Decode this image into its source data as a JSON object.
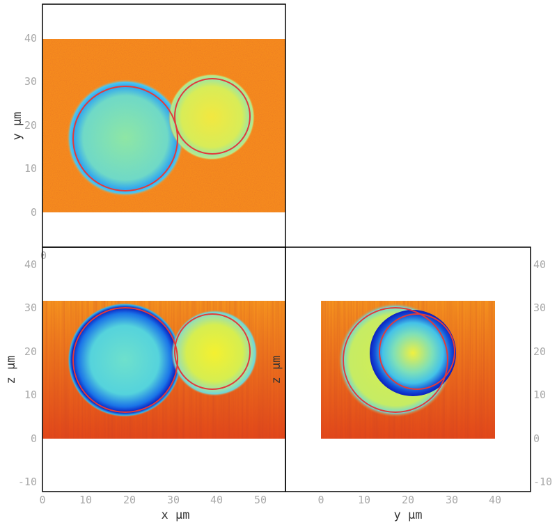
{
  "colors": {
    "frame": "#000000",
    "tick_text": "#a8a8a8",
    "circle": "#e23a3a",
    "colormap": "jet"
  },
  "panels": {
    "xy": {
      "xlabel": "",
      "ylabel": "y  µm",
      "yticks": [
        "0",
        "10",
        "20",
        "30",
        "40"
      ],
      "corner_tick": "0"
    },
    "xz": {
      "xlabel": "x  µm",
      "ylabel": "z  µm",
      "xticks": [
        "0",
        "10",
        "20",
        "30",
        "40",
        "50"
      ],
      "yticks": [
        "-10",
        "0",
        "10",
        "20",
        "30",
        "40"
      ]
    },
    "yz": {
      "xlabel": "y  µm",
      "ylabel": "z  µm",
      "xticks": [
        "0",
        "10",
        "20",
        "30",
        "40"
      ],
      "yticks": [
        "-10",
        "0",
        "10",
        "20",
        "30",
        "40"
      ]
    }
  }
}
